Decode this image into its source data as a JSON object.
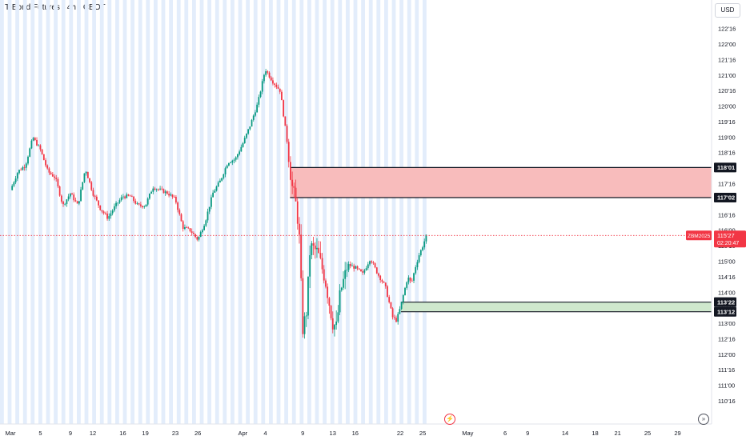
{
  "header": {
    "title": "T-Bond Futures · 4h · CBOT",
    "currency": "USD"
  },
  "icons": {
    "events": "lightning-icon",
    "goto_realtime": "go-to-realtime-icon"
  },
  "colors": {
    "up": "#089981",
    "down": "#f23645",
    "red_zone": "#f8bcbc",
    "green_zone": "#cfe8cd",
    "session_shade": "#e3edfb",
    "price_line": "#f23645",
    "grid_text": "#131722"
  },
  "chart_data": {
    "type": "candlestick",
    "title": "T-Bond Futures · 4h · CBOT",
    "price_unit": "32nds",
    "y_ticks": [
      "110'16",
      "111'00",
      "111'16",
      "112'00",
      "112'16",
      "113'00",
      "113'16",
      "114'00",
      "114'16",
      "115'00",
      "115'16",
      "116'00",
      "116'16",
      "117'16",
      "118'16",
      "119'00",
      "119'16",
      "120'00",
      "120'16",
      "121'00",
      "121'16",
      "122'00",
      "122'16"
    ],
    "y_tick_values": [
      110.5,
      111,
      111.5,
      112,
      112.5,
      113,
      113.5,
      114,
      114.5,
      115,
      115.5,
      116,
      116.5,
      117.5,
      118.5,
      119,
      119.5,
      120,
      120.5,
      121,
      121.5,
      122,
      122.5
    ],
    "ylim": [
      110.4,
      123.0
    ],
    "x_ticks": [
      "Mar",
      "5",
      "9",
      "12",
      "16",
      "19",
      "23",
      "26",
      "Apr",
      "4",
      "9",
      "13",
      "16",
      "22",
      "25",
      "May",
      "6",
      "9",
      "14",
      "18",
      "21",
      "25",
      "29"
    ],
    "x_tick_days": [
      1,
      5,
      9,
      12,
      16,
      19,
      23,
      26,
      32,
      35,
      40,
      44,
      47,
      53,
      56,
      62,
      67,
      70,
      75,
      79,
      82,
      86,
      90
    ],
    "xlim_days": [
      1,
      94
    ],
    "last_bar_day": 56.5,
    "current_price": {
      "symbol": "ZBM2025",
      "value": "115'27",
      "numeric": 115.84,
      "countdown": "02:20:47"
    },
    "zones": [
      {
        "type": "supply",
        "top_label": "118'01",
        "bottom_label": "117'02",
        "top": 118.03,
        "bottom": 117.06,
        "start_day": 38.3
      },
      {
        "type": "demand",
        "top_label": "113'22",
        "bottom_label": "113'12",
        "top": 113.69,
        "bottom": 113.38,
        "start_day": 53.1
      }
    ],
    "close_path": [
      [
        1,
        117.3
      ],
      [
        2,
        117.9
      ],
      [
        3,
        118.1
      ],
      [
        4,
        119.0
      ],
      [
        5,
        118.6
      ],
      [
        6,
        117.9
      ],
      [
        7,
        117.7
      ],
      [
        8,
        116.8
      ],
      [
        9,
        117.2
      ],
      [
        10,
        116.8
      ],
      [
        11,
        118.0
      ],
      [
        12,
        117.2
      ],
      [
        13,
        116.7
      ],
      [
        14,
        116.4
      ],
      [
        15,
        116.8
      ],
      [
        16,
        117.1
      ],
      [
        17,
        117.1
      ],
      [
        18,
        116.8
      ],
      [
        19,
        116.8
      ],
      [
        20,
        117.4
      ],
      [
        21,
        117.3
      ],
      [
        22,
        117.2
      ],
      [
        23,
        117.0
      ],
      [
        24,
        116.1
      ],
      [
        25,
        116.0
      ],
      [
        26,
        115.7
      ],
      [
        27,
        116.3
      ],
      [
        28,
        117.2
      ],
      [
        29,
        117.6
      ],
      [
        30,
        118.2
      ],
      [
        31,
        118.3
      ],
      [
        32,
        118.8
      ],
      [
        33,
        119.4
      ],
      [
        34,
        120.1
      ],
      [
        35,
        121.2
      ],
      [
        36,
        120.8
      ],
      [
        37,
        120.5
      ],
      [
        38,
        118.7
      ],
      [
        38.5,
        117.5
      ],
      [
        39,
        117.0
      ],
      [
        39.5,
        116.0
      ],
      [
        40,
        112.8
      ],
      [
        40.5,
        113.4
      ],
      [
        41,
        115.5
      ],
      [
        42,
        115.3
      ],
      [
        43,
        114.4
      ],
      [
        44,
        113.0
      ],
      [
        44.5,
        112.9
      ],
      [
        45,
        114.0
      ],
      [
        46,
        114.9
      ],
      [
        47,
        114.8
      ],
      [
        48,
        114.6
      ],
      [
        49,
        115.1
      ],
      [
        50,
        114.6
      ],
      [
        51,
        114.2
      ],
      [
        52,
        113.2
      ],
      [
        52.5,
        113.1
      ],
      [
        53,
        113.5
      ],
      [
        54,
        114.5
      ],
      [
        54.5,
        114.3
      ],
      [
        55,
        114.8
      ],
      [
        55.5,
        115.2
      ],
      [
        56,
        115.5
      ],
      [
        56.5,
        115.84
      ]
    ]
  }
}
